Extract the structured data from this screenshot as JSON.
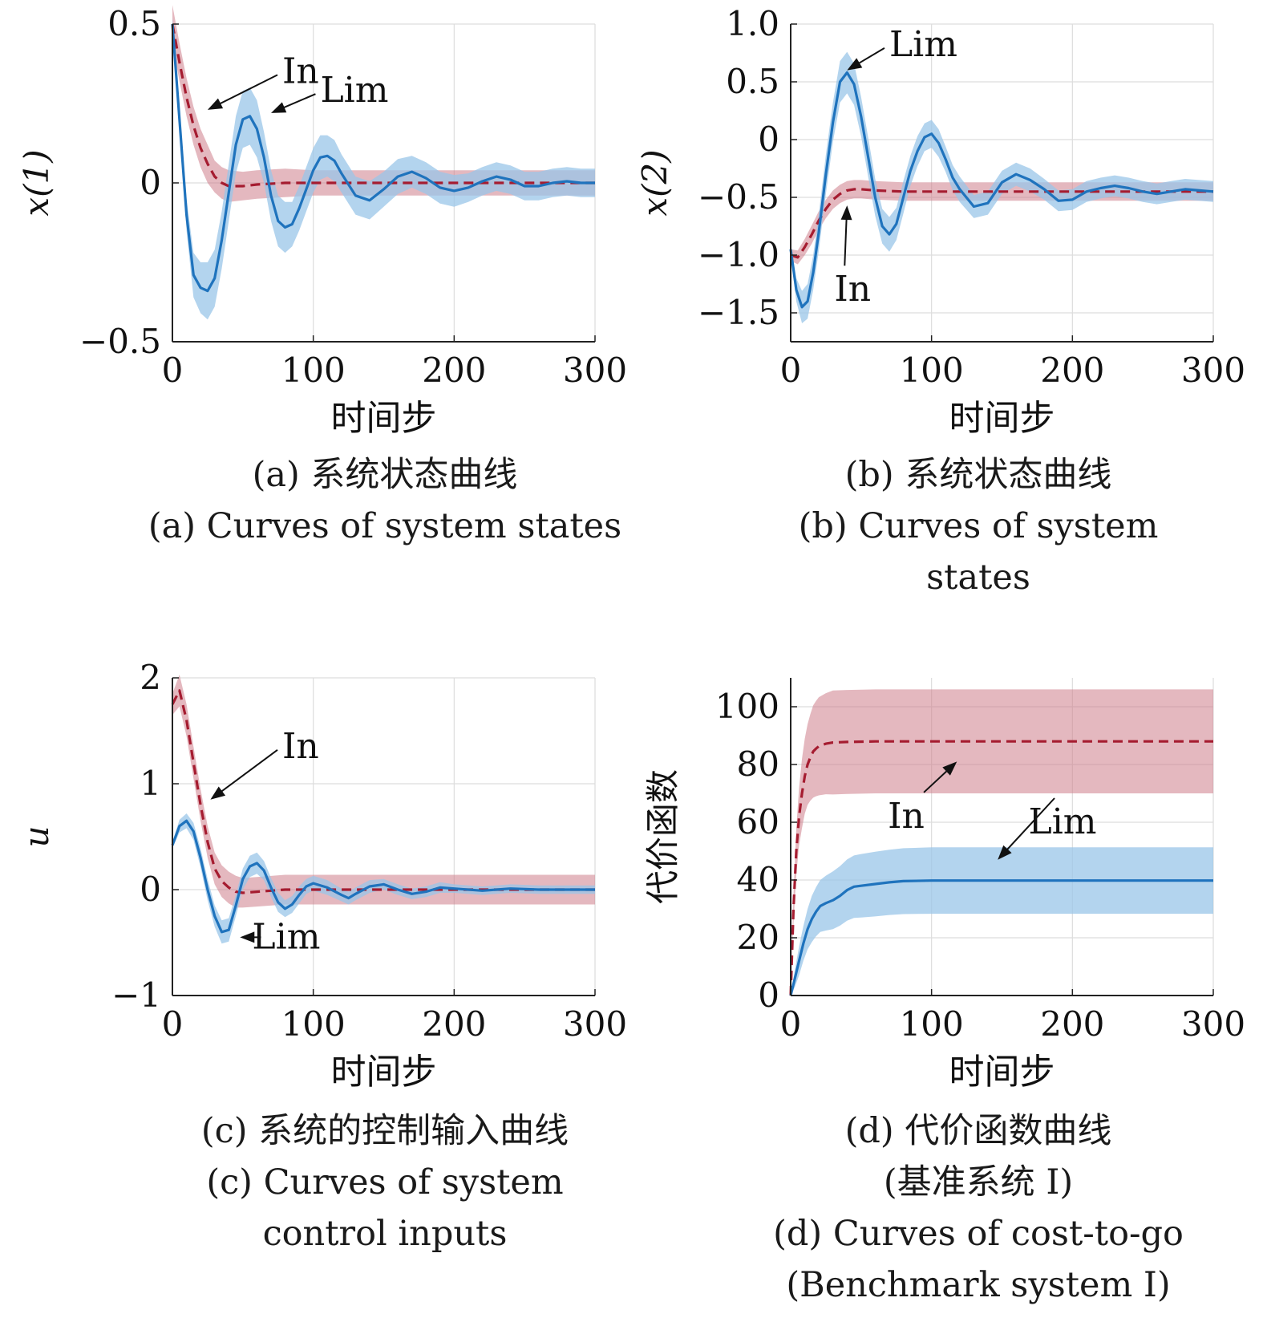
{
  "colors": {
    "in": "#a51c30",
    "in_band": "#cd7d8a",
    "lim": "#1f73bd",
    "lim_band": "#9ac6e8",
    "grid": "#dddddd",
    "axis": "#222222"
  },
  "chart_data": [
    {
      "id": "a",
      "type": "line",
      "ylabel": "x(1)",
      "xlabel": "时间步",
      "xlim": [
        0,
        300
      ],
      "ylim": [
        -0.5,
        0.5
      ],
      "xticks": [
        0,
        100,
        200,
        300
      ],
      "xtick_labels": [
        "0",
        "100",
        "200",
        "300"
      ],
      "yticks": [
        -0.5,
        0,
        0.5
      ],
      "ytick_labels": [
        "−0.5",
        "0",
        "0.5"
      ],
      "grid": true,
      "series": [
        {
          "name": "In",
          "style": "dashed",
          "color": "#a51c30",
          "x": [
            0,
            5,
            10,
            15,
            20,
            25,
            30,
            35,
            40,
            50,
            60,
            80,
            100,
            150,
            200,
            250,
            300
          ],
          "y": [
            0.5,
            0.38,
            0.27,
            0.18,
            0.11,
            0.06,
            0.02,
            0.0,
            -0.01,
            -0.01,
            -0.005,
            0,
            0,
            0,
            0,
            0,
            0
          ],
          "band": [
            0.06,
            0.06,
            0.06,
            0.06,
            0.06,
            0.06,
            0.05,
            0.05,
            0.05,
            0.045,
            0.045,
            0.045,
            0.04,
            0.04,
            0.04,
            0.04,
            0.04
          ]
        },
        {
          "name": "Lim",
          "style": "solid",
          "color": "#1f73bd",
          "x": [
            0,
            5,
            10,
            15,
            20,
            25,
            30,
            35,
            40,
            45,
            50,
            55,
            60,
            65,
            70,
            75,
            80,
            85,
            90,
            95,
            100,
            105,
            110,
            115,
            120,
            130,
            140,
            150,
            160,
            170,
            180,
            190,
            200,
            210,
            220,
            230,
            240,
            250,
            260,
            270,
            280,
            290,
            300
          ],
          "y": [
            0.5,
            0.2,
            -0.1,
            -0.29,
            -0.33,
            -0.34,
            -0.3,
            -0.18,
            -0.03,
            0.12,
            0.2,
            0.21,
            0.17,
            0.08,
            -0.04,
            -0.12,
            -0.14,
            -0.13,
            -0.08,
            -0.02,
            0.04,
            0.08,
            0.085,
            0.07,
            0.03,
            -0.04,
            -0.055,
            -0.02,
            0.02,
            0.035,
            0.015,
            -0.015,
            -0.025,
            -0.015,
            0.005,
            0.02,
            0.01,
            -0.01,
            -0.01,
            0.0,
            0.005,
            0.0,
            0.0
          ],
          "band": [
            0.02,
            0.04,
            0.05,
            0.07,
            0.08,
            0.09,
            0.09,
            0.09,
            0.09,
            0.09,
            0.09,
            0.09,
            0.09,
            0.08,
            0.08,
            0.08,
            0.08,
            0.07,
            0.07,
            0.07,
            0.07,
            0.07,
            0.065,
            0.065,
            0.06,
            0.06,
            0.06,
            0.055,
            0.055,
            0.05,
            0.05,
            0.05,
            0.05,
            0.045,
            0.045,
            0.045,
            0.045,
            0.045,
            0.045,
            0.045,
            0.045,
            0.045,
            0.045
          ]
        }
      ],
      "annotations": [
        {
          "text": "In",
          "tx": 78,
          "ty": 0.35,
          "ax": 25,
          "ay": 0.23,
          "anchor": "start",
          "series_color": "#a51c30"
        },
        {
          "text": "Lim",
          "tx": 105,
          "ty": 0.29,
          "ax": 70,
          "ay": 0.22,
          "anchor": "start",
          "series_color": "#1f73bd"
        }
      ]
    },
    {
      "id": "b",
      "type": "line",
      "ylabel": "x(2)",
      "xlabel": "时间步",
      "xlim": [
        0,
        300
      ],
      "ylim": [
        -1.75,
        1.0
      ],
      "xticks": [
        0,
        100,
        200,
        300
      ],
      "xtick_labels": [
        "0",
        "100",
        "200",
        "300"
      ],
      "yticks": [
        -1.5,
        -1.0,
        -0.5,
        0,
        0.5,
        1.0
      ],
      "ytick_labels": [
        "−1.5",
        "−1.0",
        "−0.5",
        "0",
        "0.5",
        "1.0"
      ],
      "grid": true,
      "series": [
        {
          "name": "In",
          "style": "dashed",
          "color": "#a51c30",
          "x": [
            0,
            5,
            10,
            15,
            20,
            25,
            30,
            35,
            40,
            45,
            50,
            60,
            80,
            100,
            150,
            200,
            250,
            300
          ],
          "y": [
            -1.0,
            -1.02,
            -0.93,
            -0.82,
            -0.7,
            -0.6,
            -0.52,
            -0.47,
            -0.44,
            -0.43,
            -0.43,
            -0.44,
            -0.45,
            -0.45,
            -0.45,
            -0.45,
            -0.45,
            -0.45
          ],
          "band": [
            0.05,
            0.06,
            0.07,
            0.08,
            0.08,
            0.08,
            0.08,
            0.08,
            0.08,
            0.08,
            0.08,
            0.08,
            0.08,
            0.08,
            0.08,
            0.08,
            0.08,
            0.08
          ]
        },
        {
          "name": "Lim",
          "style": "solid",
          "color": "#1f73bd",
          "x": [
            0,
            4,
            8,
            12,
            16,
            20,
            25,
            30,
            35,
            40,
            45,
            50,
            55,
            60,
            65,
            70,
            75,
            80,
            85,
            90,
            95,
            100,
            105,
            110,
            115,
            120,
            130,
            140,
            150,
            160,
            170,
            180,
            190,
            200,
            210,
            220,
            230,
            240,
            250,
            260,
            270,
            280,
            290,
            300
          ],
          "y": [
            -0.95,
            -1.3,
            -1.45,
            -1.4,
            -1.15,
            -0.8,
            -0.3,
            0.15,
            0.5,
            0.58,
            0.48,
            0.2,
            -0.15,
            -0.5,
            -0.75,
            -0.82,
            -0.73,
            -0.5,
            -0.27,
            -0.1,
            0.02,
            0.05,
            -0.03,
            -0.17,
            -0.33,
            -0.43,
            -0.58,
            -0.55,
            -0.37,
            -0.3,
            -0.35,
            -0.43,
            -0.53,
            -0.52,
            -0.45,
            -0.42,
            -0.4,
            -0.42,
            -0.45,
            -0.47,
            -0.45,
            -0.43,
            -0.44,
            -0.45
          ],
          "band": [
            0.05,
            0.1,
            0.14,
            0.15,
            0.15,
            0.16,
            0.17,
            0.17,
            0.18,
            0.18,
            0.18,
            0.17,
            0.17,
            0.16,
            0.15,
            0.15,
            0.14,
            0.14,
            0.13,
            0.13,
            0.12,
            0.12,
            0.12,
            0.11,
            0.11,
            0.11,
            0.1,
            0.1,
            0.1,
            0.1,
            0.1,
            0.09,
            0.09,
            0.09,
            0.09,
            0.09,
            0.09,
            0.09,
            0.09,
            0.09,
            0.09,
            0.09,
            0.09,
            0.09
          ]
        }
      ],
      "annotations": [
        {
          "text": "Lim",
          "tx": 70,
          "ty": 0.82,
          "ax": 40,
          "ay": 0.6,
          "anchor": "start",
          "series_color": "#1f73bd"
        },
        {
          "text": "In",
          "tx": 44,
          "ty": -1.3,
          "ax": 40,
          "ay": -0.57,
          "anchor": "middle",
          "series_color": "#a51c30"
        }
      ]
    },
    {
      "id": "c",
      "type": "line",
      "ylabel": "u",
      "xlabel": "时间步",
      "xlim": [
        0,
        300
      ],
      "ylim": [
        -1,
        2
      ],
      "xticks": [
        0,
        100,
        200,
        300
      ],
      "xtick_labels": [
        "0",
        "100",
        "200",
        "300"
      ],
      "yticks": [
        -1,
        0,
        1,
        2
      ],
      "ytick_labels": [
        "−1",
        "0",
        "1",
        "2"
      ],
      "grid": true,
      "series": [
        {
          "name": "In",
          "style": "dashed",
          "color": "#a51c30",
          "x": [
            0,
            5,
            10,
            15,
            20,
            25,
            30,
            35,
            40,
            45,
            50,
            60,
            80,
            100,
            150,
            200,
            250,
            300
          ],
          "y": [
            1.75,
            1.88,
            1.6,
            1.2,
            0.8,
            0.45,
            0.2,
            0.08,
            0.02,
            -0.02,
            -0.03,
            -0.02,
            0.0,
            0.0,
            0.0,
            0.0,
            0.0,
            0.0
          ],
          "band": [
            0.1,
            0.15,
            0.15,
            0.15,
            0.15,
            0.15,
            0.15,
            0.15,
            0.15,
            0.15,
            0.14,
            0.14,
            0.14,
            0.14,
            0.14,
            0.14,
            0.14,
            0.14
          ]
        },
        {
          "name": "Lim",
          "style": "solid",
          "color": "#1f73bd",
          "x": [
            0,
            5,
            10,
            15,
            20,
            25,
            30,
            35,
            40,
            45,
            50,
            55,
            60,
            65,
            70,
            75,
            80,
            85,
            90,
            95,
            100,
            110,
            120,
            125,
            130,
            140,
            150,
            160,
            170,
            180,
            190,
            200,
            220,
            240,
            260,
            280,
            300
          ],
          "y": [
            0.42,
            0.6,
            0.65,
            0.55,
            0.3,
            0.0,
            -0.25,
            -0.4,
            -0.38,
            -0.15,
            0.1,
            0.22,
            0.25,
            0.18,
            0.02,
            -0.12,
            -0.18,
            -0.14,
            -0.05,
            0.03,
            0.06,
            0.02,
            -0.05,
            -0.08,
            -0.04,
            0.03,
            0.05,
            0.0,
            -0.04,
            -0.02,
            0.02,
            0.01,
            -0.01,
            0.01,
            0.0,
            0.0,
            0.0
          ],
          "band": [
            0.03,
            0.06,
            0.07,
            0.08,
            0.09,
            0.1,
            0.1,
            0.11,
            0.11,
            0.1,
            0.1,
            0.1,
            0.1,
            0.09,
            0.09,
            0.09,
            0.08,
            0.08,
            0.08,
            0.07,
            0.07,
            0.07,
            0.06,
            0.06,
            0.06,
            0.06,
            0.05,
            0.05,
            0.05,
            0.05,
            0.05,
            0.04,
            0.04,
            0.04,
            0.04,
            0.04,
            0.04
          ]
        }
      ],
      "annotations": [
        {
          "text": "In",
          "tx": 78,
          "ty": 1.35,
          "ax": 27,
          "ay": 0.85,
          "anchor": "start",
          "series_color": "#a51c30"
        },
        {
          "text": "Lim",
          "tx": 105,
          "ty": -0.45,
          "ax": 48,
          "ay": -0.45,
          "anchor": "end",
          "series_color": "#1f73bd"
        }
      ]
    },
    {
      "id": "d",
      "type": "line",
      "ylabel": "代价函数",
      "xlabel": "时间步",
      "xlim": [
        0,
        300
      ],
      "ylim": [
        0,
        110
      ],
      "xticks": [
        0,
        100,
        200,
        300
      ],
      "xtick_labels": [
        "0",
        "100",
        "200",
        "300"
      ],
      "yticks": [
        0,
        20,
        40,
        60,
        80,
        100
      ],
      "ytick_labels": [
        "0",
        "20",
        "40",
        "60",
        "80",
        "100"
      ],
      "grid": true,
      "series": [
        {
          "name": "In",
          "style": "dashed",
          "color": "#a51c30",
          "x": [
            0,
            2,
            4,
            6,
            8,
            10,
            12,
            14,
            16,
            18,
            20,
            25,
            30,
            40,
            60,
            100,
            150,
            200,
            250,
            300
          ],
          "y": [
            0,
            30,
            50,
            62,
            70,
            76,
            80,
            82.5,
            84.5,
            85.5,
            86.3,
            87.2,
            87.6,
            87.8,
            88,
            88,
            88,
            88,
            88,
            88
          ],
          "band": [
            0,
            5,
            8,
            10,
            12,
            13,
            14,
            15,
            16,
            16.5,
            17,
            17.5,
            18,
            18,
            18,
            18,
            18,
            18,
            18,
            18
          ]
        },
        {
          "name": "Lim",
          "style": "solid",
          "color": "#1f73bd",
          "x": [
            0,
            3,
            6,
            9,
            12,
            15,
            18,
            21,
            25,
            30,
            35,
            40,
            45,
            50,
            60,
            70,
            80,
            100,
            150,
            200,
            250,
            300
          ],
          "y": [
            0,
            6,
            12,
            18,
            23,
            26.5,
            29,
            31,
            32,
            33,
            34.5,
            36.5,
            37.7,
            38,
            38.6,
            39.2,
            39.6,
            39.8,
            39.8,
            39.8,
            39.8,
            39.8
          ],
          "band": [
            0,
            3,
            5,
            6,
            7,
            8,
            8.5,
            9,
            9.5,
            10,
            10.3,
            10.6,
            10.8,
            11,
            11.2,
            11.3,
            11.4,
            11.5,
            11.5,
            11.5,
            11.5,
            11.5
          ]
        }
      ],
      "annotations": [
        {
          "text": "In",
          "tx": 82,
          "ty": 62,
          "ax": 118,
          "ay": 81,
          "anchor": "middle",
          "series_color": "#a51c30"
        },
        {
          "text": "Lim",
          "tx": 193,
          "ty": 60,
          "ax": 147,
          "ay": 47,
          "anchor": "middle",
          "series_color": "#1f73bd"
        }
      ]
    }
  ],
  "captions": {
    "a": {
      "zh": "(a) 系统状态曲线",
      "en1": "(a) Curves of system states"
    },
    "b": {
      "zh": "(b) 系统状态曲线",
      "en1": "(b) Curves of system",
      "en2": "states"
    },
    "c": {
      "zh": "(c) 系统的控制输入曲线",
      "en1": "(c) Curves of system",
      "en2": "control inputs"
    },
    "d": {
      "zh1": "(d) 代价函数曲线",
      "zh2": "(基准系统 I)",
      "en1": "(d) Curves of cost-to-go",
      "en2": "(Benchmark system I)"
    }
  }
}
